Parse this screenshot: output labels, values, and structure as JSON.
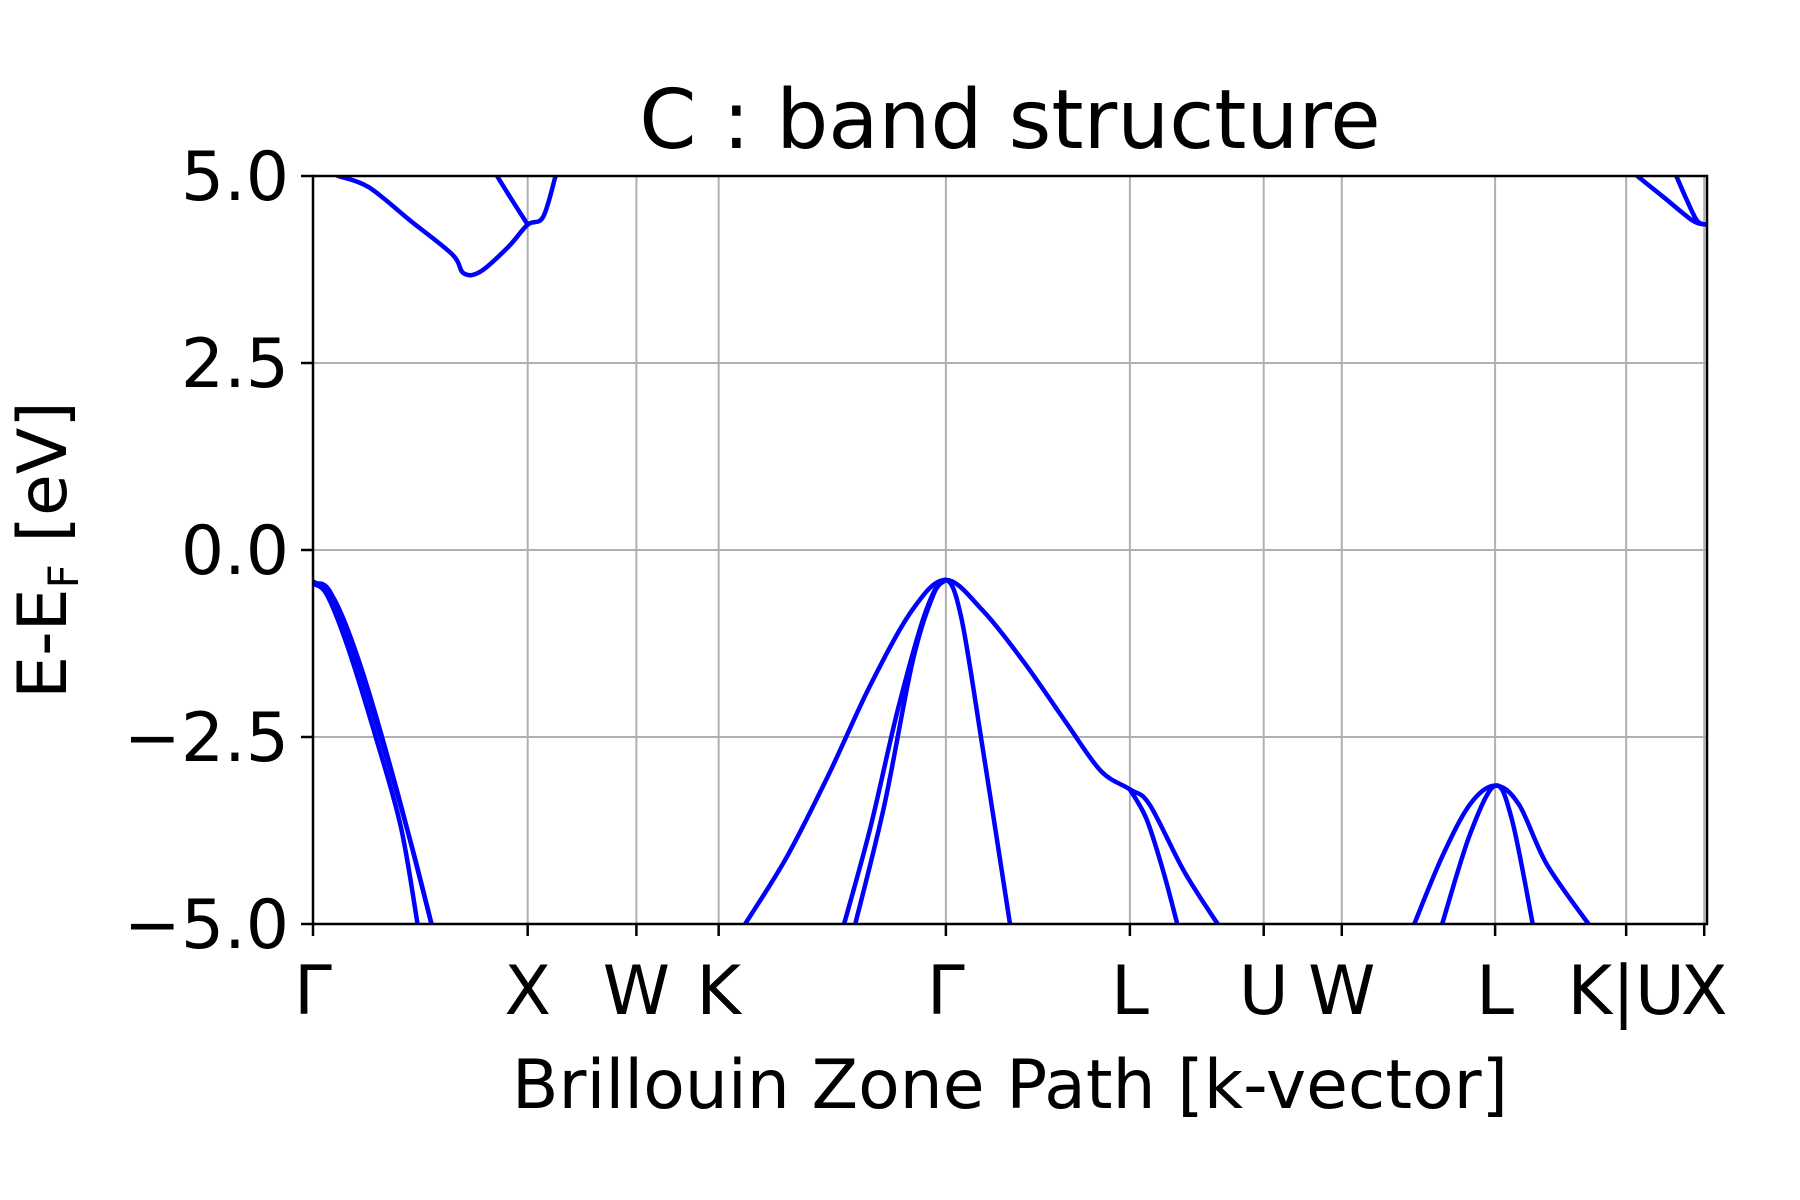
{
  "chart_data": {
    "type": "line",
    "title": "C : band structure",
    "xlabel": "Brillouin Zone Path [k-vector]",
    "ylabel": "E-E",
    "ylabel_subscript": "F",
    "ylabel_suffix": " [eV]",
    "ylim": [
      -5.0,
      5.0
    ],
    "xlim": [
      0,
      1
    ],
    "y_ticks": [
      {
        "value": -5.0,
        "label": "−5.0"
      },
      {
        "value": -2.5,
        "label": "−2.5"
      },
      {
        "value": 0.0,
        "label": "0.0"
      },
      {
        "value": 2.5,
        "label": "2.5"
      },
      {
        "value": 5.0,
        "label": "5.0"
      }
    ],
    "x_ticks": [
      {
        "value": 0.0,
        "label": "Γ"
      },
      {
        "value": 0.154,
        "label": "X"
      },
      {
        "value": 0.232,
        "label": "W"
      },
      {
        "value": 0.291,
        "label": "K"
      },
      {
        "value": 0.454,
        "label": "Γ"
      },
      {
        "value": 0.586,
        "label": "L"
      },
      {
        "value": 0.682,
        "label": "U"
      },
      {
        "value": 0.738,
        "label": "W"
      },
      {
        "value": 0.848,
        "label": "L"
      },
      {
        "value": 0.942,
        "label": "K|U"
      },
      {
        "value": 0.998,
        "label": "X"
      }
    ],
    "grid": true,
    "line_color": "#0000ff",
    "series": [
      {
        "values": [
          [
            0.0,
            -0.45
          ],
          [
            0.01,
            -0.6
          ],
          [
            0.025,
            -1.3
          ],
          [
            0.045,
            -2.5
          ],
          [
            0.063,
            -3.7
          ],
          [
            0.075,
            -5.0
          ]
        ]
      },
      {
        "values": [
          [
            0.0,
            -0.45
          ],
          [
            0.012,
            -0.55
          ],
          [
            0.03,
            -1.4
          ],
          [
            0.05,
            -2.6
          ],
          [
            0.07,
            -3.9
          ],
          [
            0.085,
            -5.0
          ]
        ]
      },
      {
        "values": [
          [
            0.0,
            -0.42
          ],
          [
            0.015,
            -0.65
          ],
          [
            0.035,
            -1.6
          ],
          [
            0.06,
            -3.2
          ],
          [
            0.085,
            -5.0
          ]
        ]
      },
      {
        "values": [
          [
            0.018,
            5.0
          ],
          [
            0.04,
            4.85
          ],
          [
            0.07,
            4.4
          ],
          [
            0.1,
            3.95
          ],
          [
            0.108,
            3.7
          ],
          [
            0.12,
            3.72
          ],
          [
            0.14,
            4.05
          ],
          [
            0.154,
            4.35
          ],
          [
            0.165,
            4.45
          ],
          [
            0.174,
            5.0
          ]
        ]
      },
      {
        "values": [
          [
            0.132,
            5.0
          ],
          [
            0.142,
            4.7
          ],
          [
            0.154,
            4.35
          ]
        ]
      },
      {
        "values": [
          [
            0.31,
            -5.0
          ],
          [
            0.34,
            -4.1
          ],
          [
            0.37,
            -3.0
          ],
          [
            0.4,
            -1.8
          ],
          [
            0.43,
            -0.8
          ],
          [
            0.454,
            -0.4
          ],
          [
            0.48,
            -0.8
          ],
          [
            0.51,
            -1.5
          ],
          [
            0.54,
            -2.3
          ],
          [
            0.565,
            -2.95
          ],
          [
            0.586,
            -3.2
          ],
          [
            0.6,
            -3.4
          ],
          [
            0.625,
            -4.3
          ],
          [
            0.649,
            -5.0
          ]
        ]
      },
      {
        "values": [
          [
            0.381,
            -5.0
          ],
          [
            0.4,
            -3.7
          ],
          [
            0.42,
            -2.1
          ],
          [
            0.44,
            -0.8
          ],
          [
            0.454,
            -0.4
          ],
          [
            0.465,
            -0.9
          ],
          [
            0.48,
            -2.6
          ],
          [
            0.5,
            -5.0
          ]
        ]
      },
      {
        "values": [
          [
            0.389,
            -5.0
          ],
          [
            0.41,
            -3.4
          ],
          [
            0.43,
            -1.5
          ],
          [
            0.445,
            -0.6
          ],
          [
            0.454,
            -0.4
          ]
        ]
      },
      {
        "values": [
          [
            0.586,
            -3.2
          ],
          [
            0.598,
            -3.6
          ],
          [
            0.61,
            -4.3
          ],
          [
            0.62,
            -5.0
          ]
        ]
      },
      {
        "values": [
          [
            0.79,
            -5.0
          ],
          [
            0.81,
            -4.1
          ],
          [
            0.83,
            -3.4
          ],
          [
            0.848,
            -3.15
          ],
          [
            0.865,
            -3.4
          ],
          [
            0.885,
            -4.2
          ],
          [
            0.915,
            -5.0
          ]
        ]
      },
      {
        "values": [
          [
            0.81,
            -5.0
          ],
          [
            0.83,
            -3.8
          ],
          [
            0.848,
            -3.15
          ],
          [
            0.86,
            -3.6
          ],
          [
            0.875,
            -5.0
          ]
        ]
      },
      {
        "values": [
          [
            0.95,
            5.0
          ],
          [
            0.97,
            4.7
          ],
          [
            0.99,
            4.4
          ],
          [
            1.0,
            4.35
          ]
        ]
      },
      {
        "values": [
          [
            0.978,
            5.0
          ],
          [
            0.985,
            4.7
          ],
          [
            0.993,
            4.4
          ],
          [
            1.0,
            4.35
          ]
        ]
      }
    ]
  }
}
